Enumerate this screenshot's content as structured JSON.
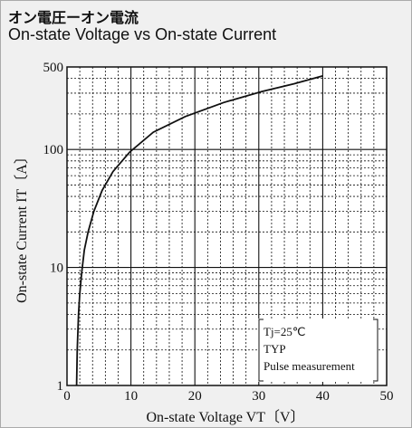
{
  "header": {
    "title_jp": "オン電圧ーオン電流",
    "title_en": "On-state Voltage vs On-state Current"
  },
  "chart_data": {
    "type": "line",
    "title": "On-state Voltage vs On-state Current",
    "xlabel": "On-state Voltage  VT〔V〕",
    "ylabel": "On-state Current  IT〔A〕",
    "xlim": [
      0,
      50
    ],
    "ylim": [
      1,
      500
    ],
    "yscale": "log",
    "grid": true,
    "x_ticks": [
      "0",
      "10",
      "20",
      "30",
      "40",
      "50"
    ],
    "y_ticks": [
      "1",
      "10",
      "100",
      "500"
    ],
    "series": [
      {
        "x": [
          1.5,
          1.6,
          1.8,
          2.0,
          2.3,
          2.7,
          3.3,
          4.2,
          5.5,
          7.2,
          9.8,
          13.5,
          18.5,
          24.5,
          30.5,
          35.5,
          40.0
        ],
        "y": [
          1,
          2,
          4,
          6,
          9,
          14,
          20,
          30,
          45,
          65,
          95,
          140,
          190,
          250,
          310,
          360,
          420
        ]
      }
    ],
    "annotation": {
      "lines": [
        "Tj=25℃",
        "TYP",
        "Pulse measurement"
      ]
    }
  }
}
